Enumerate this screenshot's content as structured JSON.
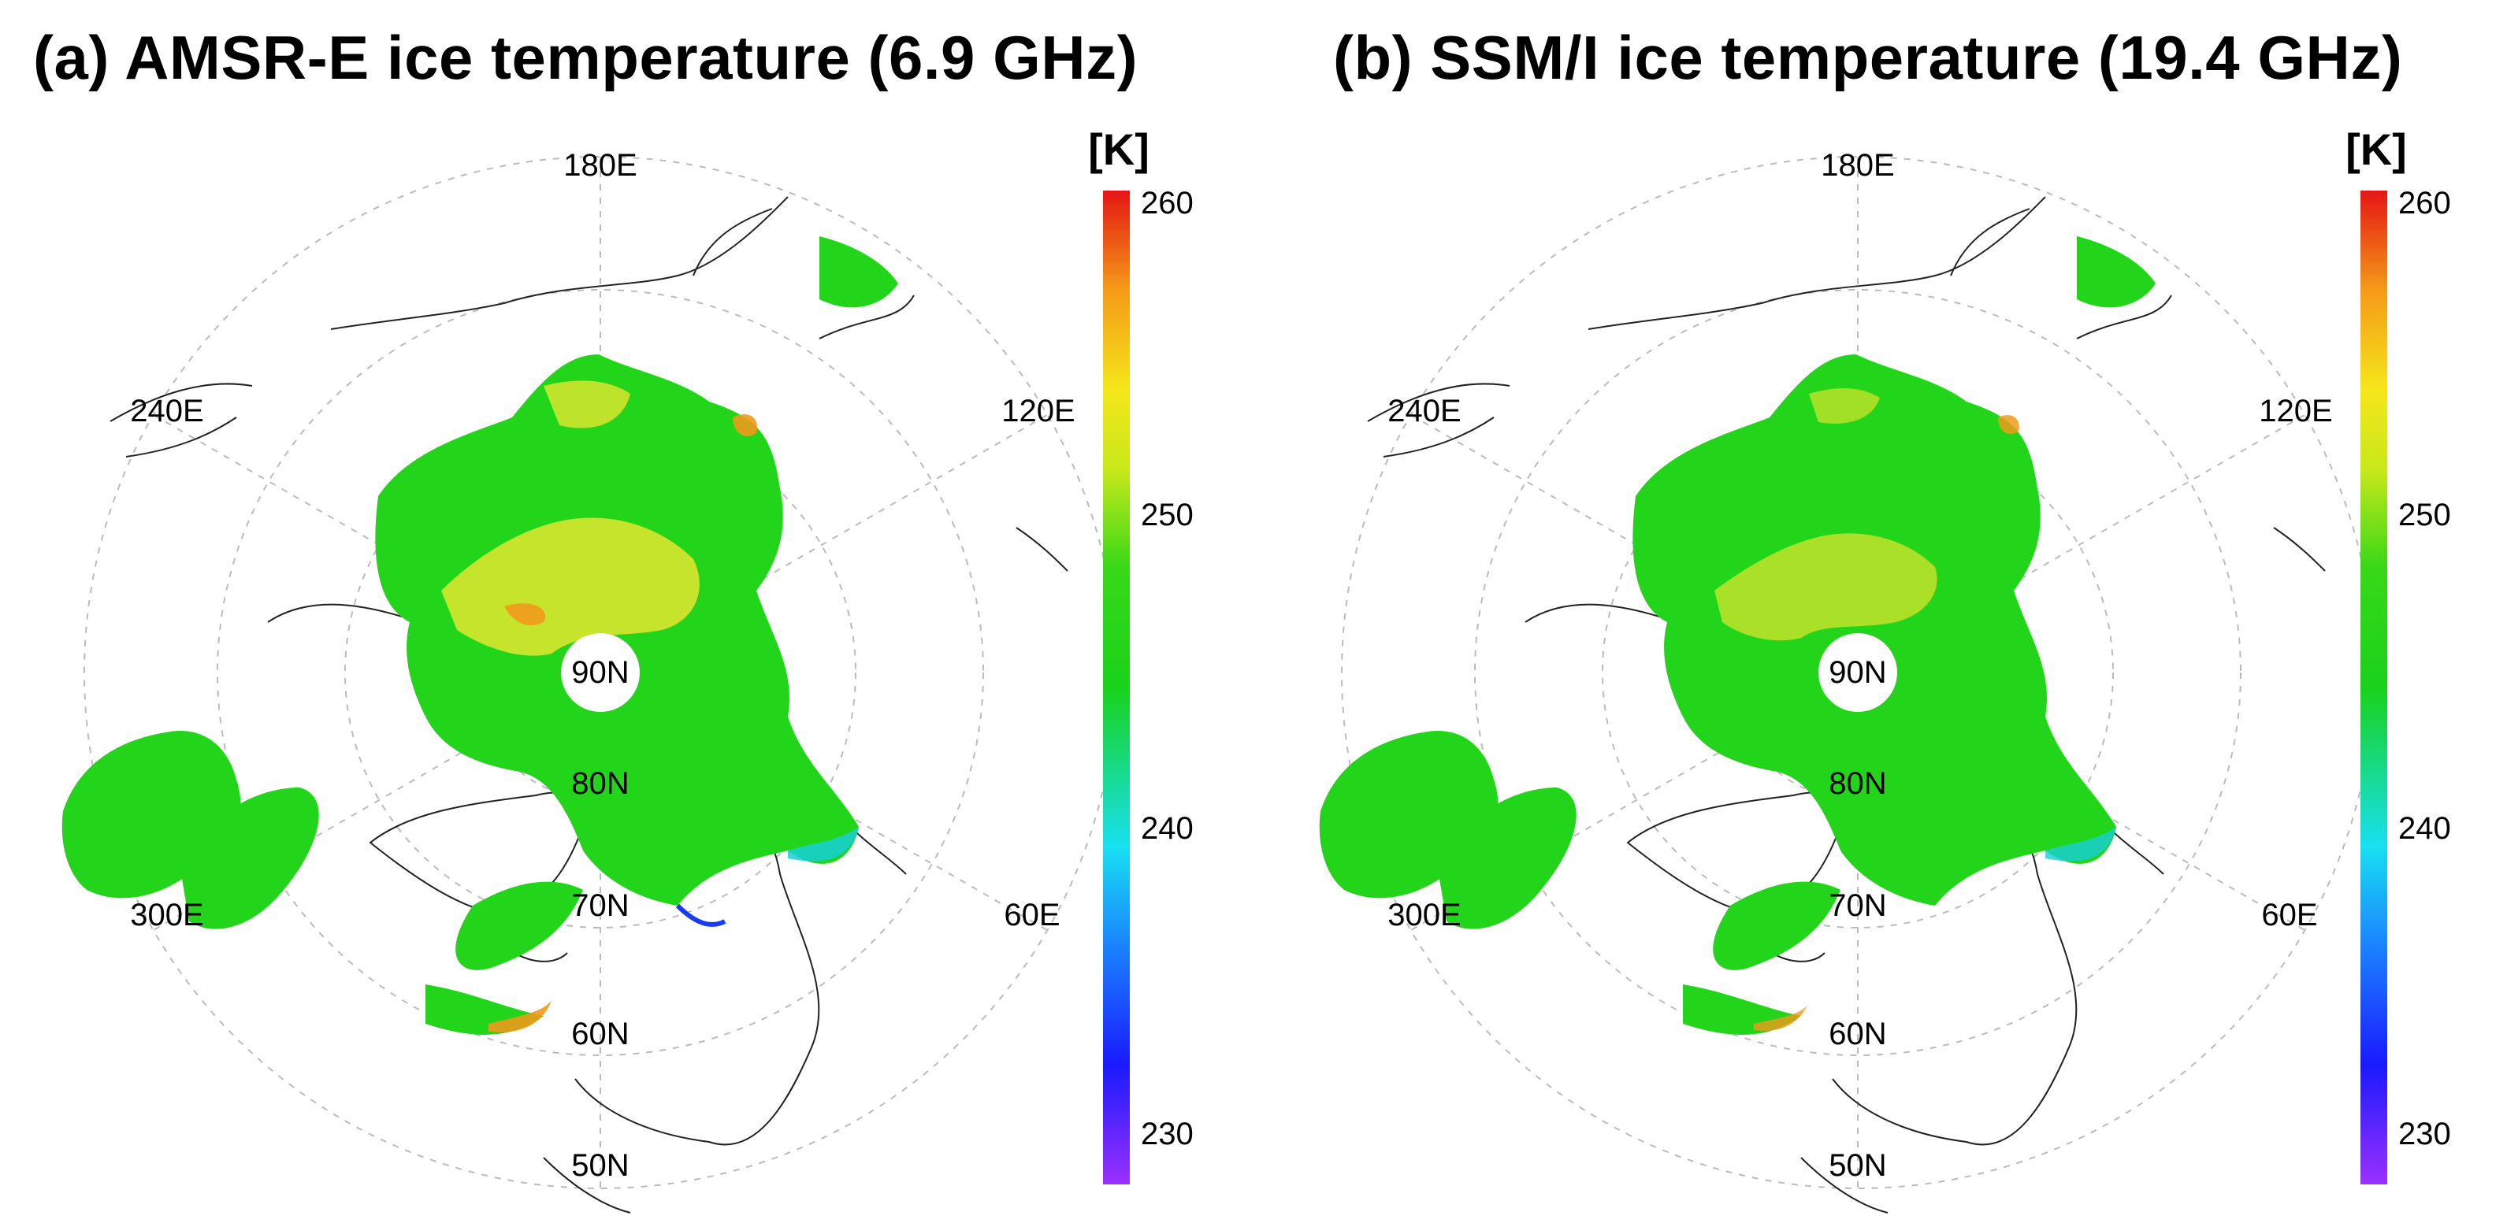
{
  "figure": {
    "panels": [
      {
        "id": "a",
        "title": "(a) AMSR-E ice temperature  (6.9 GHz)",
        "unit": "[K]",
        "pole_label": "90N",
        "longitude_labels": [
          "180E",
          "120E",
          "60E",
          "300E",
          "240E"
        ],
        "latitude_labels": [
          "80N",
          "70N",
          "60N",
          "50N"
        ],
        "colorbar": {
          "min": 230,
          "max": 260,
          "ticks": [
            "260",
            "250",
            "240",
            "230"
          ]
        }
      },
      {
        "id": "b",
        "title": "(b) SSM/I ice temperature (19.4 GHz)",
        "unit": "[K]",
        "pole_label": "90N",
        "longitude_labels": [
          "180E",
          "120E",
          "60E",
          "300E",
          "240E"
        ],
        "latitude_labels": [
          "80N",
          "70N",
          "60N",
          "50N"
        ],
        "colorbar": {
          "min": 230,
          "max": 260,
          "ticks": [
            "260",
            "250",
            "240",
            "230"
          ]
        }
      }
    ]
  },
  "colors": {
    "ice_base": "#22d41a",
    "ice_warm": "#d8e62e",
    "ice_hot": "#f09a1c",
    "ice_edge": "#18cfd8",
    "ice_cold": "#1a3cf0",
    "grid": "#bbbbbb",
    "coast": "#222222"
  }
}
